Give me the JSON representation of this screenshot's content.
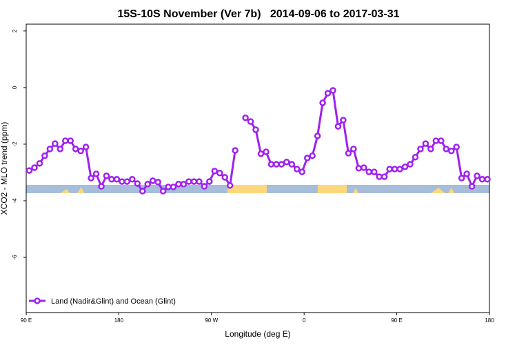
{
  "chart_data": {
    "type": "line",
    "title": "15S-10S November (Ver 7b)   2014-09-06 to 2017-03-31",
    "x_label": "Longitude (deg E)",
    "y_label": "XCO2 - MLO trend (ppm)",
    "xlim": [
      90,
      540
    ],
    "xticks": [
      {
        "value": 90,
        "label": "90 E"
      },
      180,
      {
        "value": 270,
        "label": "90 W"
      },
      {
        "value": 360,
        "label": "0"
      },
      {
        "value": 450,
        "label": "90 E"
      },
      {
        "value": 540,
        "label": "180"
      }
    ],
    "ylim": [
      -7.95,
      2.24
    ],
    "yticks": [
      -6,
      -4,
      -2,
      0,
      2
    ],
    "legend": "bottom-left",
    "x": [
      93,
      98,
      103,
      108,
      113,
      118,
      123,
      128,
      133,
      138,
      143,
      148,
      153,
      158,
      163,
      168,
      173,
      178,
      183,
      188,
      193,
      198,
      203,
      208,
      213,
      218,
      223,
      228,
      233,
      238,
      243,
      248,
      253,
      258,
      263,
      268,
      273,
      278,
      283,
      288,
      293,
      298,
      303,
      308,
      313,
      318,
      323,
      328,
      333,
      338,
      343,
      348,
      353,
      358,
      363,
      368,
      373,
      378,
      383,
      388,
      393,
      398,
      403,
      408,
      413,
      418,
      423,
      428,
      433,
      438,
      443,
      448,
      453,
      458,
      463,
      468,
      473,
      478,
      483,
      488,
      493,
      498,
      503,
      508,
      513,
      518,
      523,
      528,
      533,
      538
    ],
    "series": [
      {
        "name": "Land (Nadir&Glint) and Ocean (Glint)",
        "color": "#a020f0",
        "values": [
          -2.93,
          -2.83,
          -2.68,
          -2.41,
          -2.17,
          -1.98,
          -2.17,
          -1.88,
          -1.88,
          -2.17,
          -2.24,
          -2.1,
          -3.2,
          -3.05,
          -3.49,
          -3.12,
          -3.24,
          -3.24,
          -3.32,
          -3.32,
          -3.24,
          -3.39,
          -3.66,
          -3.41,
          -3.29,
          -3.34,
          -3.66,
          -3.51,
          -3.51,
          -3.41,
          -3.41,
          -3.32,
          -3.32,
          -3.32,
          -3.49,
          -3.32,
          -2.95,
          -3.02,
          -3.17,
          -3.46,
          -2.22,
          null,
          -1.07,
          -1.2,
          -1.49,
          -2.34,
          -2.27,
          -2.71,
          -2.71,
          -2.71,
          -2.63,
          -2.71,
          -2.88,
          -2.98,
          -2.49,
          -2.41,
          -1.71,
          -0.54,
          -0.2,
          -0.1,
          -1.37,
          -1.15,
          -2.32,
          -2.17,
          -2.85,
          -2.83,
          -2.98,
          -2.98,
          -3.15,
          -3.15,
          -2.88,
          -2.88,
          -2.88,
          -2.8,
          -2.71,
          -2.46,
          -2.17,
          -1.98,
          -2.17,
          -1.88,
          -1.88,
          -2.17,
          -2.24,
          -2.1,
          -3.2,
          -3.05,
          -3.49,
          -3.12,
          -3.24,
          -3.24
        ]
      }
    ]
  }
}
